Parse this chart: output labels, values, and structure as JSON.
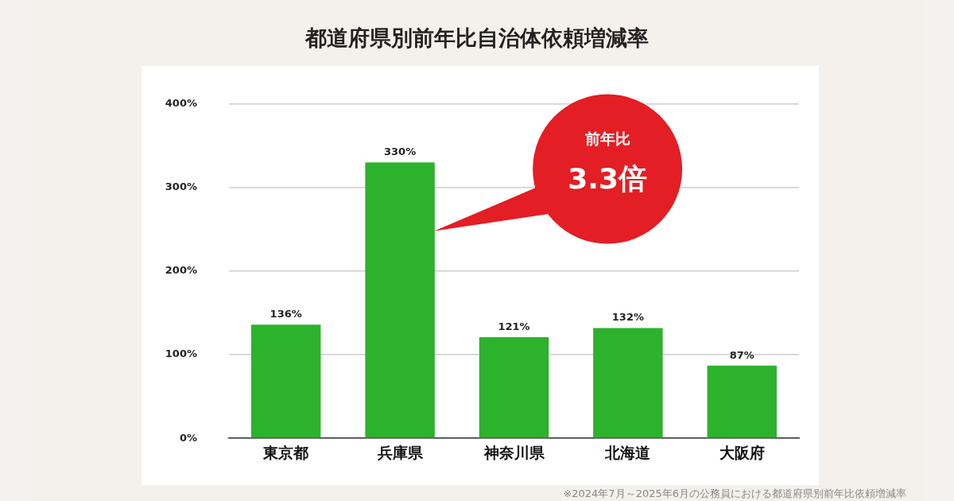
{
  "chart_data": {
    "type": "bar",
    "title": "都道府県別前年比自治体依頼増減率",
    "categories": [
      "東京都",
      "兵庫県",
      "神奈川県",
      "北海道",
      "大阪府"
    ],
    "values": [
      136,
      330,
      121,
      132,
      87
    ],
    "value_labels": [
      "136%",
      "330%",
      "121%",
      "132%",
      "87%"
    ],
    "color": "#2db22d",
    "ylim": [
      0,
      400
    ],
    "yticks": [
      {
        "value": 0,
        "label": "0%"
      },
      {
        "value": 100,
        "label": "100%"
      },
      {
        "value": 200,
        "label": "200%"
      },
      {
        "value": 300,
        "label": "300%"
      },
      {
        "value": 400,
        "label": "400%"
      }
    ],
    "grid": "y",
    "annotations": [
      "前年比",
      "3.3倍",
      "※2024年7月～2025年6月の公務員における都道府県別前年比依頼増減率"
    ]
  }
}
